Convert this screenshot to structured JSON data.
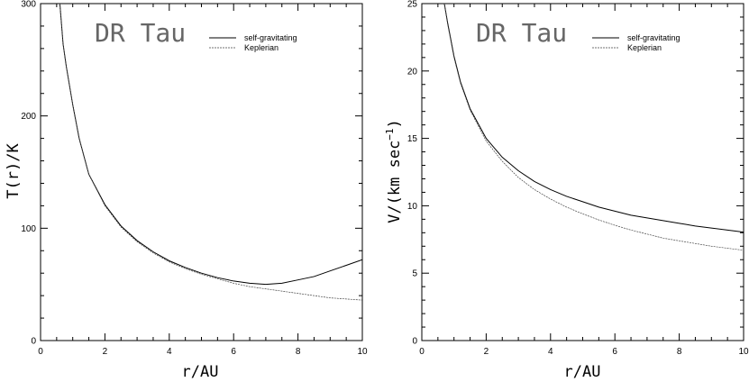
{
  "chart_data": [
    {
      "type": "line",
      "title": "DR Tau",
      "xlabel": "r/AU",
      "ylabel": "T(r)/K",
      "xlim": [
        0,
        10
      ],
      "ylim": [
        0,
        300
      ],
      "xticks": [
        0,
        2,
        4,
        6,
        8,
        10
      ],
      "yticks": [
        0,
        100,
        200,
        300
      ],
      "legend_position": "top-right",
      "series": [
        {
          "name": "self-gravitating",
          "style": "solid",
          "x": [
            0.6,
            0.7,
            0.8,
            1.0,
            1.2,
            1.5,
            2.0,
            2.5,
            3.0,
            3.5,
            4.0,
            4.5,
            5.0,
            5.5,
            6.0,
            6.5,
            7.0,
            7.5,
            8.0,
            8.5,
            9.0,
            9.5,
            10.0
          ],
          "y": [
            300,
            264,
            244,
            210,
            180,
            148,
            121,
            102,
            89,
            79,
            71,
            65,
            60,
            56,
            53,
            51,
            50,
            51,
            54,
            57,
            62,
            67,
            72
          ]
        },
        {
          "name": "Keplerian",
          "style": "dashed",
          "x": [
            0.6,
            0.7,
            0.8,
            1.0,
            1.2,
            1.5,
            2.0,
            2.5,
            3.0,
            3.5,
            4.0,
            4.5,
            5.0,
            5.5,
            6.0,
            6.5,
            7.0,
            7.5,
            8.0,
            8.5,
            9.0,
            9.5,
            10.0
          ],
          "y": [
            300,
            264,
            244,
            210,
            180,
            148,
            120,
            101,
            88,
            78,
            70,
            64,
            59,
            55,
            51,
            48,
            46,
            44,
            42,
            40,
            38,
            37,
            36
          ]
        }
      ]
    },
    {
      "type": "line",
      "title": "DR Tau",
      "xlabel": "r/AU",
      "ylabel": "V/(km sec",
      "ylabel_sup": "−1",
      "ylabel_close": ")",
      "xlim": [
        0,
        10
      ],
      "ylim": [
        0,
        25
      ],
      "xticks": [
        0,
        2,
        4,
        6,
        8,
        10
      ],
      "yticks": [
        0,
        5,
        10,
        15,
        20,
        25
      ],
      "legend_position": "top-right",
      "series": [
        {
          "name": "self-gravitating",
          "style": "solid",
          "x": [
            0.7,
            0.8,
            1.0,
            1.2,
            1.5,
            2.0,
            2.5,
            3.0,
            3.5,
            4.0,
            4.5,
            5.0,
            5.5,
            6.0,
            6.5,
            7.0,
            7.5,
            8.0,
            8.5,
            9.0,
            9.5,
            10.0
          ],
          "y": [
            25,
            23.6,
            21.1,
            19.2,
            17.2,
            15.0,
            13.6,
            12.6,
            11.8,
            11.2,
            10.7,
            10.3,
            9.9,
            9.6,
            9.3,
            9.1,
            8.9,
            8.7,
            8.5,
            8.35,
            8.2,
            8.05
          ]
        },
        {
          "name": "Keplerian",
          "style": "dashed",
          "x": [
            0.7,
            0.8,
            1.0,
            1.2,
            1.5,
            2.0,
            2.5,
            3.0,
            3.5,
            4.0,
            4.5,
            5.0,
            5.5,
            6.0,
            6.5,
            7.0,
            7.5,
            8.0,
            8.5,
            9.0,
            9.5,
            10.0
          ],
          "y": [
            25,
            23.5,
            21.0,
            19.1,
            17.1,
            14.8,
            13.3,
            12.1,
            11.2,
            10.5,
            9.9,
            9.4,
            8.95,
            8.55,
            8.2,
            7.9,
            7.6,
            7.4,
            7.2,
            7.0,
            6.85,
            6.7
          ]
        }
      ]
    }
  ]
}
